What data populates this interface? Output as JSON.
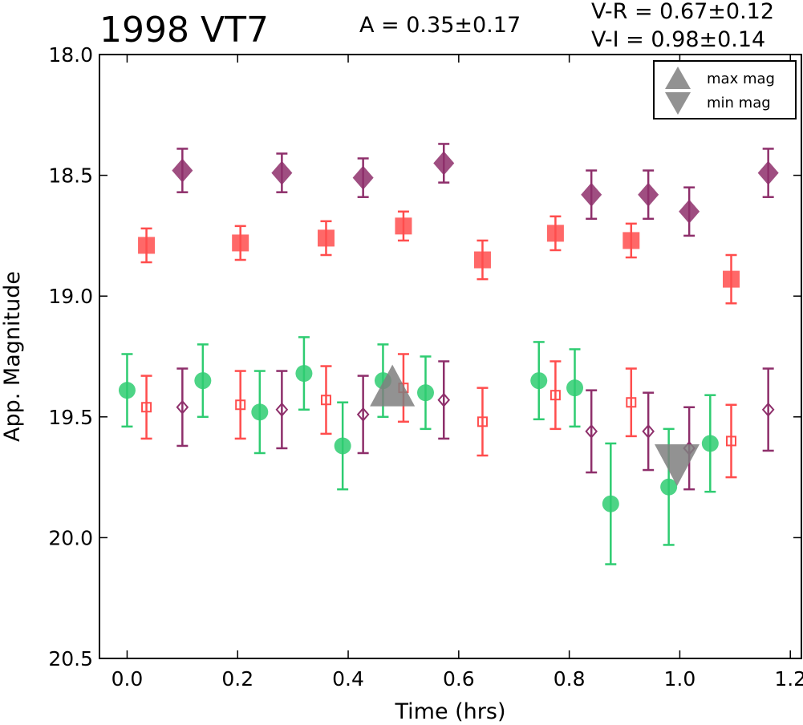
{
  "header": {
    "title": "1998 VT7",
    "amplitude": "A  = 0.35±0.17",
    "v_r": "V-R = 0.67±0.12",
    "v_i": "V-I  = 0.98±0.14"
  },
  "chart_data": {
    "type": "scatter",
    "xlabel": "Time (hrs)",
    "ylabel": "App. Magnitude",
    "xlim": [
      -0.05,
      1.22
    ],
    "ylim": [
      18.0,
      20.5
    ],
    "y_inverted": true,
    "x_ticks": [
      0.0,
      0.2,
      0.4,
      0.6,
      0.8,
      1.0,
      1.2
    ],
    "x_tick_labels": [
      "0.0",
      "0.2",
      "0.4",
      "0.6",
      "0.8",
      "1.0",
      "1.2"
    ],
    "y_ticks": [
      18.0,
      18.5,
      19.0,
      19.5,
      20.0,
      20.5
    ],
    "y_tick_labels": [
      "18.0",
      "18.5",
      "19.0",
      "19.5",
      "20.0",
      "20.5"
    ],
    "grid": false,
    "legend": {
      "placement": "top-right",
      "entries": [
        {
          "label": "max mag",
          "marker": "triangle-up",
          "color": "#7f7f7f"
        },
        {
          "label": "min mag",
          "marker": "triangle-down",
          "color": "#7f7f7f"
        }
      ]
    },
    "series": [
      {
        "marker": "circle",
        "filled": true,
        "color": "#2ecc71",
        "points": [
          {
            "x": 0.0,
            "y": 19.39,
            "err": 0.15
          },
          {
            "x": 0.137,
            "y": 19.35,
            "err": 0.15
          },
          {
            "x": 0.24,
            "y": 19.48,
            "err": 0.17
          },
          {
            "x": 0.32,
            "y": 19.32,
            "err": 0.15
          },
          {
            "x": 0.39,
            "y": 19.62,
            "err": 0.18
          },
          {
            "x": 0.463,
            "y": 19.35,
            "err": 0.15
          },
          {
            "x": 0.54,
            "y": 19.4,
            "err": 0.15
          },
          {
            "x": 0.745,
            "y": 19.35,
            "err": 0.16
          },
          {
            "x": 0.81,
            "y": 19.38,
            "err": 0.16
          },
          {
            "x": 0.875,
            "y": 19.86,
            "err": 0.25
          },
          {
            "x": 0.98,
            "y": 19.79,
            "err": 0.24
          },
          {
            "x": 1.055,
            "y": 19.61,
            "err": 0.2
          }
        ]
      },
      {
        "marker": "square",
        "filled": true,
        "color": "#ff4d4d",
        "points": [
          {
            "x": 0.035,
            "y": 18.79,
            "err": 0.07
          },
          {
            "x": 0.205,
            "y": 18.78,
            "err": 0.07
          },
          {
            "x": 0.36,
            "y": 18.76,
            "err": 0.07
          },
          {
            "x": 0.5,
            "y": 18.71,
            "err": 0.06
          },
          {
            "x": 0.643,
            "y": 18.85,
            "err": 0.08
          },
          {
            "x": 0.775,
            "y": 18.74,
            "err": 0.07
          },
          {
            "x": 0.912,
            "y": 18.77,
            "err": 0.07
          },
          {
            "x": 1.093,
            "y": 18.93,
            "err": 0.1
          }
        ]
      },
      {
        "marker": "diamond",
        "filled": true,
        "color": "#8e2f6b",
        "points": [
          {
            "x": 0.1,
            "y": 18.48,
            "err": 0.09
          },
          {
            "x": 0.28,
            "y": 18.49,
            "err": 0.08
          },
          {
            "x": 0.427,
            "y": 18.51,
            "err": 0.08
          },
          {
            "x": 0.573,
            "y": 18.45,
            "err": 0.08
          },
          {
            "x": 0.84,
            "y": 18.58,
            "err": 0.1
          },
          {
            "x": 0.943,
            "y": 18.58,
            "err": 0.1
          },
          {
            "x": 1.017,
            "y": 18.65,
            "err": 0.1
          },
          {
            "x": 1.16,
            "y": 18.49,
            "err": 0.1
          }
        ]
      },
      {
        "marker": "square",
        "filled": false,
        "color": "#ff4d4d",
        "points": [
          {
            "x": 0.035,
            "y": 19.46,
            "err": 0.13
          },
          {
            "x": 0.205,
            "y": 19.45,
            "err": 0.14
          },
          {
            "x": 0.36,
            "y": 19.43,
            "err": 0.14
          },
          {
            "x": 0.5,
            "y": 19.38,
            "err": 0.14
          },
          {
            "x": 0.643,
            "y": 19.52,
            "err": 0.14
          },
          {
            "x": 0.775,
            "y": 19.41,
            "err": 0.14
          },
          {
            "x": 0.912,
            "y": 19.44,
            "err": 0.14
          },
          {
            "x": 1.093,
            "y": 19.6,
            "err": 0.15
          }
        ]
      },
      {
        "marker": "diamond",
        "filled": false,
        "color": "#8e2f6b",
        "points": [
          {
            "x": 0.1,
            "y": 19.46,
            "err": 0.16
          },
          {
            "x": 0.28,
            "y": 19.47,
            "err": 0.16
          },
          {
            "x": 0.427,
            "y": 19.49,
            "err": 0.16
          },
          {
            "x": 0.573,
            "y": 19.43,
            "err": 0.16
          },
          {
            "x": 0.84,
            "y": 19.56,
            "err": 0.17
          },
          {
            "x": 0.943,
            "y": 19.56,
            "err": 0.16
          },
          {
            "x": 1.017,
            "y": 19.63,
            "err": 0.17
          },
          {
            "x": 1.16,
            "y": 19.47,
            "err": 0.17
          }
        ]
      }
    ],
    "extrema": [
      {
        "kind": "max",
        "x": 0.48,
        "y": 19.37,
        "marker": "triangle-up",
        "color": "#7f7f7f"
      },
      {
        "kind": "min",
        "x": 0.995,
        "y": 19.7,
        "marker": "triangle-down",
        "color": "#7f7f7f"
      }
    ]
  }
}
